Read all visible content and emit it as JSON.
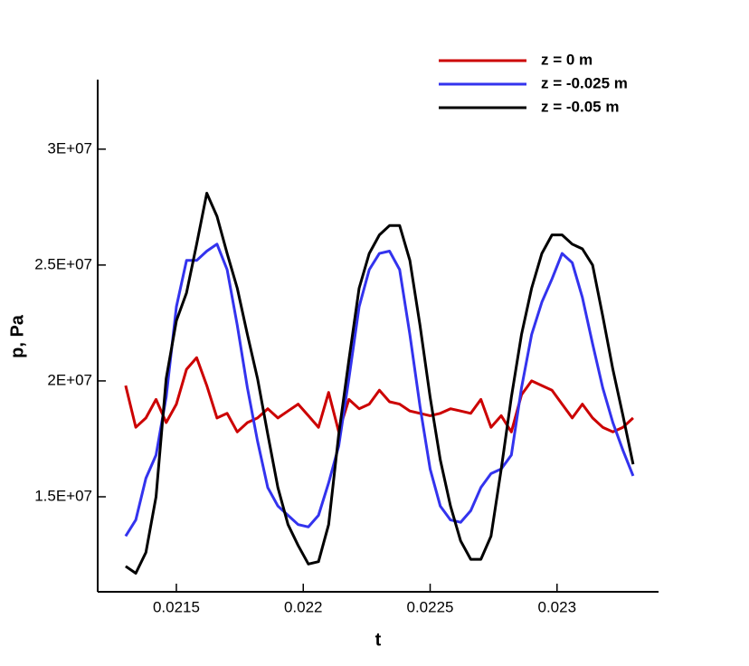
{
  "chart_data": {
    "type": "line",
    "x_label": "t",
    "y_label": "p, Pa",
    "x": [
      0.0213,
      0.02134,
      0.02138,
      0.02142,
      0.02146,
      0.0215,
      0.02154,
      0.02158,
      0.02162,
      0.02166,
      0.0217,
      0.02174,
      0.02178,
      0.02182,
      0.02186,
      0.0219,
      0.02194,
      0.02198,
      0.02202,
      0.02206,
      0.0221,
      0.02214,
      0.02218,
      0.02222,
      0.02226,
      0.0223,
      0.02234,
      0.02238,
      0.02242,
      0.02246,
      0.0225,
      0.02254,
      0.02258,
      0.02262,
      0.02266,
      0.0227,
      0.02274,
      0.02278,
      0.02282,
      0.02286,
      0.0229,
      0.02294,
      0.02298,
      0.02302,
      0.02306,
      0.0231,
      0.02314,
      0.02318,
      0.02322,
      0.02326,
      0.0233
    ],
    "series": [
      {
        "name": "z = 0 m",
        "color": "#cc0000",
        "values": [
          19800000.0,
          18000000.0,
          18400000.0,
          19200000.0,
          18200000.0,
          19000000.0,
          20500000.0,
          21000000.0,
          19800000.0,
          18400000.0,
          18600000.0,
          17800000.0,
          18200000.0,
          18400000.0,
          18800000.0,
          18400000.0,
          18700000.0,
          19000000.0,
          18500000.0,
          18000000.0,
          19500000.0,
          17800000.0,
          19200000.0,
          18800000.0,
          19000000.0,
          19600000.0,
          19100000.0,
          19000000.0,
          18700000.0,
          18600000.0,
          18500000.0,
          18600000.0,
          18800000.0,
          18700000.0,
          18600000.0,
          19200000.0,
          18000000.0,
          18500000.0,
          17800000.0,
          19400000.0,
          20000000.0,
          19800000.0,
          19600000.0,
          19000000.0,
          18400000.0,
          19000000.0,
          18400000.0,
          18000000.0,
          17800000.0,
          18000000.0,
          18400000.0
        ]
      },
      {
        "name": "z = -0.025 m",
        "color": "#3333ee",
        "values": [
          13300000.0,
          14000000.0,
          15800000.0,
          16800000.0,
          19300000.0,
          23200000.0,
          25200000.0,
          25200000.0,
          25600000.0,
          25900000.0,
          24800000.0,
          22400000.0,
          19700000.0,
          17400000.0,
          15400000.0,
          14600000.0,
          14200000.0,
          13800000.0,
          13700000.0,
          14200000.0,
          15600000.0,
          17200000.0,
          20100000.0,
          23200000.0,
          24800000.0,
          25500000.0,
          25600000.0,
          24800000.0,
          22000000.0,
          18900000.0,
          16200000.0,
          14600000.0,
          14000000.0,
          13900000.0,
          14400000.0,
          15400000.0,
          16000000.0,
          16200000.0,
          16800000.0,
          19700000.0,
          22000000.0,
          23400000.0,
          24400000.0,
          25500000.0,
          25100000.0,
          23600000.0,
          21600000.0,
          19700000.0,
          18200000.0,
          17000000.0,
          15900000.0
        ]
      },
      {
        "name": "z = -0.05 m",
        "color": "#000000",
        "values": [
          12000000.0,
          11700000.0,
          12600000.0,
          15000000.0,
          20100000.0,
          22600000.0,
          23800000.0,
          25900000.0,
          28100000.0,
          27100000.0,
          25500000.0,
          24000000.0,
          22000000.0,
          20100000.0,
          17700000.0,
          15400000.0,
          13800000.0,
          12900000.0,
          12100000.0,
          12200000.0,
          13800000.0,
          17700000.0,
          20900000.0,
          24000000.0,
          25500000.0,
          26300000.0,
          26700000.0,
          26700000.0,
          25200000.0,
          22400000.0,
          19300000.0,
          16600000.0,
          14600000.0,
          13100000.0,
          12300000.0,
          12300000.0,
          13300000.0,
          16200000.0,
          19300000.0,
          22000000.0,
          24000000.0,
          25500000.0,
          26300000.0,
          26300000.0,
          25900000.0,
          25700000.0,
          25000000.0,
          22800000.0,
          20500000.0,
          18500000.0,
          16400000.0
        ]
      }
    ],
    "xlim": [
      0.02119,
      0.0234
    ],
    "xticks": [
      0.0215,
      0.022,
      0.0225,
      0.023
    ],
    "ylim": [
      10900000.0,
      33000000.0
    ],
    "yticks": [
      {
        "value": 15000000.0,
        "label": "1.5E+07"
      },
      {
        "value": 20000000.0,
        "label": "2E+07"
      },
      {
        "value": 25000000.0,
        "label": "2.5E+07"
      },
      {
        "value": 30000000.0,
        "label": "3E+07"
      }
    ],
    "legend": "top-right"
  }
}
